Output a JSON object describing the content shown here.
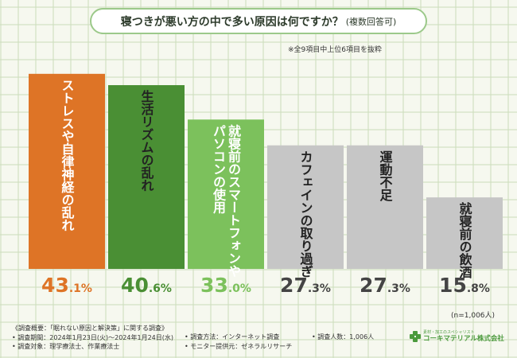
{
  "chart_data": {
    "type": "bar",
    "title": "寝つきが悪い方の中で多い原因は何ですか？",
    "title_suffix": "(複数回答可)",
    "note": "※全9項目中上位6項目を抜粋",
    "categories": [
      "ストレスや自律神経の乱れ",
      "生活リズムの乱れ",
      "就寝前のスマートフォンやパソコンの使用",
      "カフェインの取り過ぎ",
      "運動不足",
      "就寝前の飲酒"
    ],
    "category_lines": [
      [
        "ストレスや自律神経の乱れ"
      ],
      [
        "生活リズムの乱れ"
      ],
      [
        "就寝前のスマートフォンや",
        "パソコンの使用"
      ],
      [
        "カフェインの取り過ぎ"
      ],
      [
        "運動不足"
      ],
      [
        "就寝前の飲酒"
      ]
    ],
    "values": [
      43.1,
      40.6,
      33.0,
      27.3,
      27.3,
      15.8
    ],
    "value_labels": [
      {
        "int": "43",
        "dec": ".1%"
      },
      {
        "int": "40",
        "dec": ".6%"
      },
      {
        "int": "33",
        "dec": ".0%"
      },
      {
        "int": "27",
        "dec": ".3%"
      },
      {
        "int": "27",
        "dec": ".3%"
      },
      {
        "int": "15",
        "dec": ".8%"
      }
    ],
    "unit": "%",
    "ylim": [
      0,
      45
    ],
    "grid": false,
    "colors": [
      "#de7426",
      "#4a8f34",
      "#7cc15c",
      "#c6c6c6",
      "#c6c6c6",
      "#c6c6c6"
    ],
    "label_colors": [
      "#de7426",
      "#4a8f34",
      "#7cc15c",
      "#444444",
      "#444444",
      "#444444"
    ],
    "text_on_bar": [
      "#ffffff",
      "#222222",
      "#ffffff",
      "#222222",
      "#222222",
      "#222222"
    ],
    "n_label": "(n=1,006人)"
  },
  "footer": {
    "overview": "《調査概要：「眠れない原因と解決策」に関する調査》",
    "period": "• 調査期間：2024年1月23日(火)〜2024年1月24日(水)",
    "target": "• 調査対象：理学療法士、作業療法士",
    "method": "• 調査方法：インターネット調査",
    "provider": "• モニター提供元：ゼネラルリサーチ",
    "count": "• 調査人数：1,006人"
  },
  "logo": {
    "tagline": "素材・加工のスペシャリスト",
    "name": "コーキマテリアル株式会社"
  }
}
